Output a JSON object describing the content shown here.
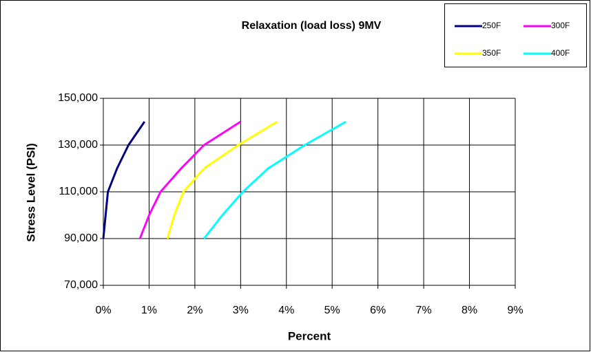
{
  "chart_data": {
    "type": "line",
    "title": "Relaxation (load loss) 9MV",
    "x_label": "Percent",
    "y_label": "Stress Level (PSI)",
    "xlim": [
      0,
      9
    ],
    "xticks": [
      {
        "value": 0,
        "label": "0%"
      },
      {
        "value": 1,
        "label": "1%"
      },
      {
        "value": 2,
        "label": "2%"
      },
      {
        "value": 3,
        "label": "3%"
      },
      {
        "value": 4,
        "label": "4%"
      },
      {
        "value": 5,
        "label": "5%"
      },
      {
        "value": 6,
        "label": "6%"
      },
      {
        "value": 7,
        "label": "7%"
      },
      {
        "value": 8,
        "label": "8%"
      },
      {
        "value": 9,
        "label": "9%"
      }
    ],
    "ylim": [
      70000,
      150000
    ],
    "yticks": [
      {
        "value": 70000,
        "label": "70,000"
      },
      {
        "value": 90000,
        "label": "90,000"
      },
      {
        "value": 110000,
        "label": "110,000"
      },
      {
        "value": 130000,
        "label": "130,000"
      },
      {
        "value": 150000,
        "label": "150,000"
      }
    ],
    "grid": true,
    "legend": "top-right",
    "series": [
      {
        "name": "250F",
        "color": "#000080",
        "x": [
          0,
          0.05,
          0.1,
          0.3,
          0.55,
          0.9
        ],
        "values": [
          90000,
          100000,
          110000,
          120000,
          130000,
          140000
        ]
      },
      {
        "name": "300F",
        "color": "#ff00ff",
        "x": [
          0.8,
          1.0,
          1.25,
          1.7,
          2.2,
          3.0
        ],
        "values": [
          90000,
          100000,
          110000,
          120000,
          130000,
          140000
        ]
      },
      {
        "name": "350F",
        "color": "#ffff00",
        "x": [
          1.4,
          1.55,
          1.75,
          2.2,
          2.95,
          3.8
        ],
        "values": [
          90000,
          100000,
          110000,
          120000,
          130000,
          140000
        ]
      },
      {
        "name": "400F",
        "color": "#00ffff",
        "x": [
          2.2,
          2.6,
          3.05,
          3.6,
          4.4,
          5.3
        ],
        "values": [
          90000,
          100000,
          110000,
          120000,
          130000,
          140000
        ]
      }
    ]
  }
}
